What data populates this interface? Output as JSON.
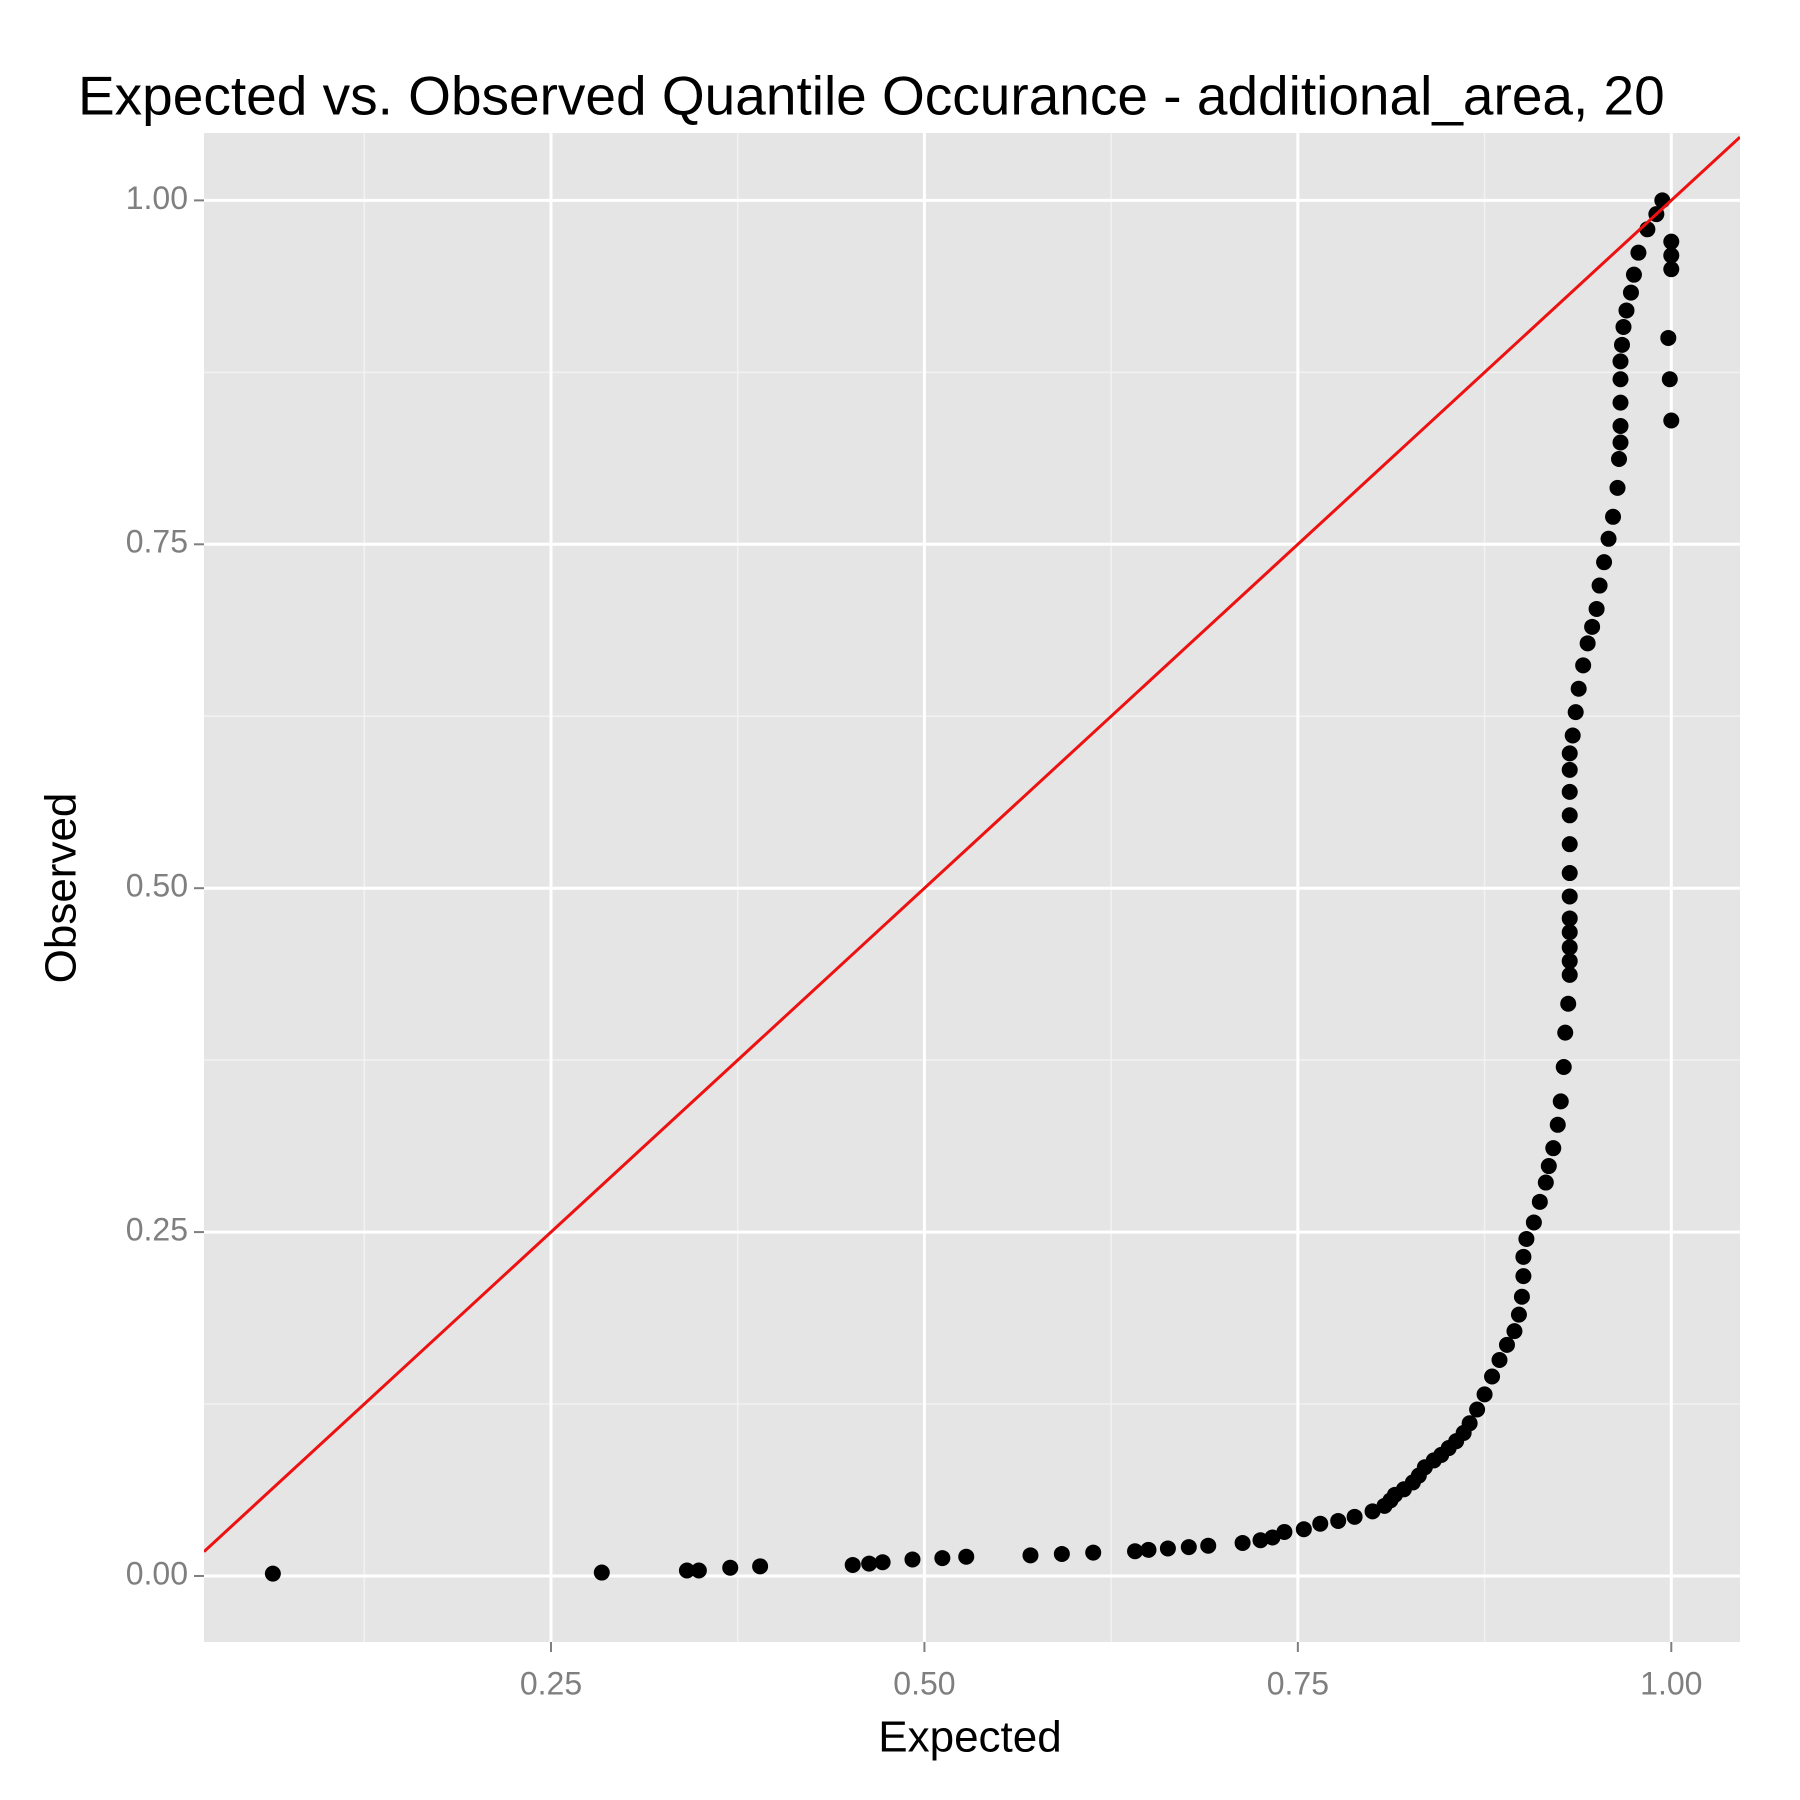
{
  "chart_data": {
    "type": "scatter",
    "title": "Expected vs. Observed Quantile Occurance - additional_area, 20",
    "x_label": "Expected",
    "y_label": "Observed",
    "xlim": [
      0.0177,
      1.046
    ],
    "ylim": [
      -0.048,
      1.049
    ],
    "xticks": [
      0.25,
      {
        "value": 0.5,
        "label": "0.50"
      },
      0.75,
      {
        "value": 1,
        "label": "1.00"
      }
    ],
    "yticks": [
      {
        "value": 0,
        "label": "0.00"
      },
      0.25,
      {
        "value": 0.5,
        "label": "0.50"
      },
      0.75,
      {
        "value": 1,
        "label": "1.00"
      }
    ],
    "xminor": [
      0.125,
      0.375,
      0.625,
      0.875
    ],
    "yminor": [
      0.125,
      0.375,
      0.625,
      0.875
    ],
    "grid": true,
    "reference_line": {
      "slope": 1,
      "intercept": 0,
      "color": "#ee1111"
    },
    "series": [
      {
        "color": "#000000",
        "x": [
          0.0638,
          0.284,
          0.341,
          0.349,
          0.37,
          0.39,
          0.452,
          0.463,
          0.472,
          0.492,
          0.512,
          0.528,
          0.571,
          0.592,
          0.613,
          0.641,
          0.65,
          0.663,
          0.677,
          0.69,
          0.713,
          0.725,
          0.733,
          0.741,
          0.754,
          0.765,
          0.777,
          0.788,
          0.8,
          0.808,
          0.812,
          0.815,
          0.821,
          0.827,
          0.831,
          0.835,
          0.841,
          0.846,
          0.851,
          0.856,
          0.861,
          0.865,
          0.87,
          0.875,
          0.88,
          0.885,
          0.89,
          0.895,
          0.898,
          0.9,
          0.901,
          0.901,
          0.903,
          0.908,
          0.912,
          0.916,
          0.918,
          0.921,
          0.924,
          0.926,
          0.928,
          0.929,
          0.931,
          0.932,
          0.932,
          0.932,
          0.932,
          0.932,
          0.932,
          0.932,
          0.932,
          0.932,
          0.932,
          0.932,
          0.932,
          0.934,
          0.936,
          0.938,
          0.941,
          0.944,
          0.947,
          0.95,
          0.952,
          0.955,
          0.958,
          0.961,
          0.964,
          0.965,
          0.966,
          0.966,
          0.966,
          0.966,
          0.966,
          0.967,
          0.968,
          0.97,
          0.973,
          0.975,
          0.978,
          0.984,
          0.99,
          0.994,
          0.998,
          0.999,
          1.0,
          1.0,
          1.0,
          1.0
        ],
        "values": [
          0.0017,
          0.0025,
          0.004,
          0.004,
          0.006,
          0.007,
          0.008,
          0.009,
          0.01,
          0.012,
          0.013,
          0.014,
          0.015,
          0.016,
          0.017,
          0.018,
          0.019,
          0.02,
          0.021,
          0.022,
          0.024,
          0.026,
          0.028,
          0.032,
          0.034,
          0.038,
          0.04,
          0.043,
          0.047,
          0.051,
          0.055,
          0.059,
          0.063,
          0.068,
          0.073,
          0.079,
          0.084,
          0.088,
          0.093,
          0.098,
          0.104,
          0.111,
          0.121,
          0.132,
          0.145,
          0.157,
          0.168,
          0.178,
          0.19,
          0.203,
          0.218,
          0.232,
          0.245,
          0.257,
          0.272,
          0.286,
          0.298,
          0.311,
          0.328,
          0.345,
          0.37,
          0.395,
          0.416,
          0.437,
          0.447,
          0.457,
          0.468,
          0.478,
          0.494,
          0.511,
          0.532,
          0.553,
          0.57,
          0.586,
          0.598,
          0.611,
          0.628,
          0.645,
          0.662,
          0.678,
          0.69,
          0.703,
          0.72,
          0.737,
          0.754,
          0.77,
          0.791,
          0.812,
          0.824,
          0.836,
          0.853,
          0.87,
          0.883,
          0.895,
          0.908,
          0.92,
          0.933,
          0.946,
          0.962,
          0.979,
          0.99,
          1.0,
          0.9,
          0.87,
          0.84,
          0.95,
          0.96,
          0.97
        ]
      }
    ]
  }
}
